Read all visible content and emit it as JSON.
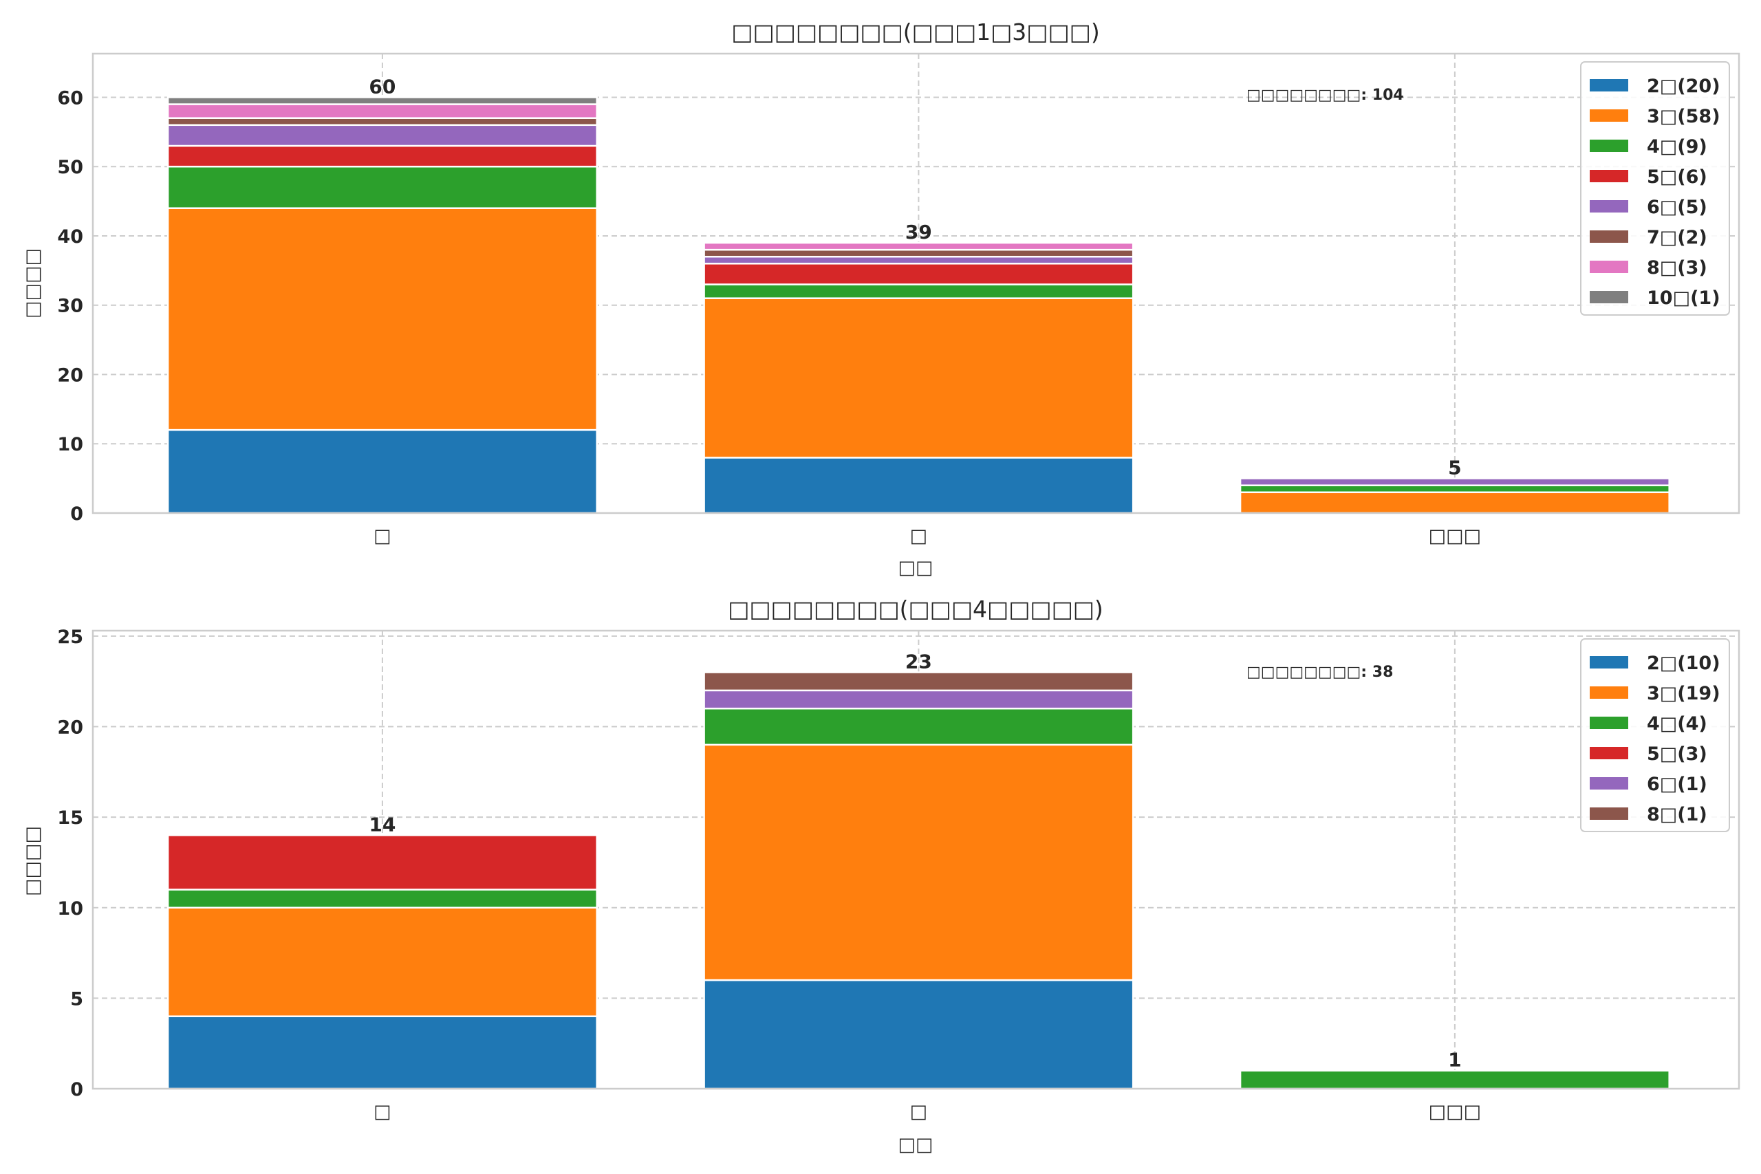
{
  "chart_data": [
    {
      "type": "bar",
      "stacked": true,
      "title": "□□□□□□□□(□□□1□3□□□)",
      "xlabel": "□□",
      "ylabel": "□□□□",
      "categories": [
        "□",
        "□",
        "□□□"
      ],
      "ylim": [
        0,
        66.3
      ],
      "yticks": [
        0,
        10,
        20,
        30,
        40,
        50,
        60
      ],
      "grid": true,
      "legend_position": "top-right",
      "annotation": {
        "label": "□□□□□□□□",
        "value": "104"
      },
      "totals": [
        60,
        39,
        5
      ],
      "series": [
        {
          "name": "2□",
          "legend": "2□(20)",
          "color": "#1f77b4",
          "values": [
            12,
            8,
            0
          ]
        },
        {
          "name": "3□",
          "legend": "3□(58)",
          "color": "#ff7f0e",
          "values": [
            32,
            23,
            3
          ]
        },
        {
          "name": "4□",
          "legend": "4□(9)",
          "color": "#2ca02c",
          "values": [
            6,
            2,
            1
          ]
        },
        {
          "name": "5□",
          "legend": "5□(6)",
          "color": "#d62728",
          "values": [
            3,
            3,
            0
          ]
        },
        {
          "name": "6□",
          "legend": "6□(5)",
          "color": "#9467bd",
          "values": [
            3,
            1,
            1
          ]
        },
        {
          "name": "7□",
          "legend": "7□(2)",
          "color": "#8c564b",
          "values": [
            1,
            1,
            0
          ]
        },
        {
          "name": "8□",
          "legend": "8□(3)",
          "color": "#e377c2",
          "values": [
            2,
            1,
            0
          ]
        },
        {
          "name": "10□",
          "legend": "10□(1)",
          "color": "#7f7f7f",
          "values": [
            1,
            0,
            0
          ]
        }
      ]
    },
    {
      "type": "bar",
      "stacked": true,
      "title": "□□□□□□□□(□□□4□□□□□)",
      "xlabel": "□□",
      "ylabel": "□□□□",
      "categories": [
        "□",
        "□",
        "□□□"
      ],
      "ylim": [
        0,
        25.3
      ],
      "yticks": [
        0,
        5,
        10,
        15,
        20,
        25
      ],
      "grid": true,
      "legend_position": "top-right",
      "annotation": {
        "label": "□□□□□□□□",
        "value": "38"
      },
      "totals": [
        14,
        23,
        1
      ],
      "series": [
        {
          "name": "2□",
          "legend": "2□(10)",
          "color": "#1f77b4",
          "values": [
            4,
            6,
            0
          ]
        },
        {
          "name": "3□",
          "legend": "3□(19)",
          "color": "#ff7f0e",
          "values": [
            6,
            13,
            0
          ]
        },
        {
          "name": "4□",
          "legend": "4□(4)",
          "color": "#2ca02c",
          "values": [
            1,
            2,
            1
          ]
        },
        {
          "name": "5□",
          "legend": "5□(3)",
          "color": "#d62728",
          "values": [
            3,
            0,
            0
          ]
        },
        {
          "name": "6□",
          "legend": "6□(1)",
          "color": "#9467bd",
          "values": [
            0,
            1,
            0
          ]
        },
        {
          "name": "8□",
          "legend": "8□(1)",
          "color": "#8c564b",
          "values": [
            0,
            1,
            0
          ]
        }
      ]
    }
  ]
}
